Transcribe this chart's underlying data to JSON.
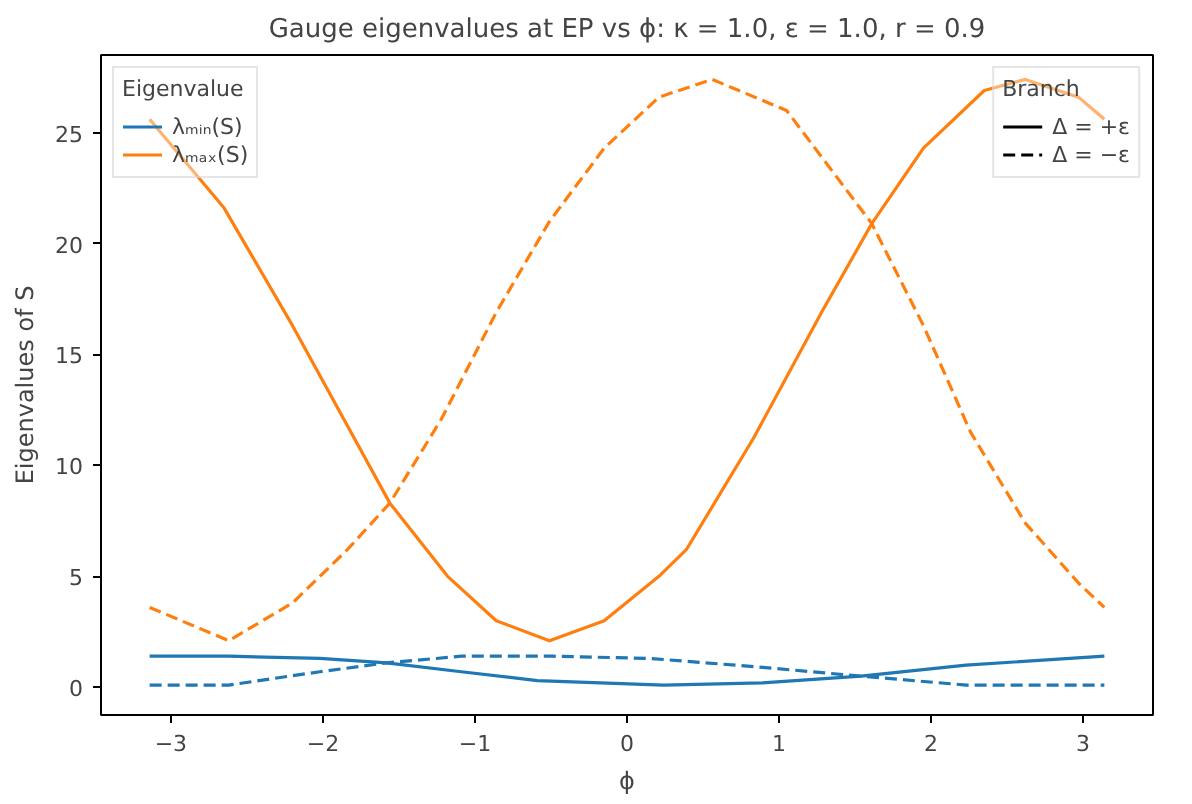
{
  "chart_data": {
    "type": "line",
    "title": "Gauge eigenvalues at EP vs ϕ: κ = 1.0, ε = 1.0, r = 0.9",
    "xlabel": "ϕ",
    "ylabel": "Eigenvalues of S",
    "xlim": [
      -3.46,
      3.46
    ],
    "ylim": [
      -1.25,
      28.5
    ],
    "xticks": [
      -3,
      -2,
      -1,
      0,
      1,
      2,
      3
    ],
    "yticks": [
      0,
      5,
      10,
      15,
      20,
      25
    ],
    "grid": false,
    "legend": "top left",
    "legend_title": "Eigenvalue",
    "annotations": [
      "Branch",
      "Δ = +ε",
      "Δ = −ε"
    ],
    "series": [
      {
        "name": "λₘᵢₙ(S)",
        "color": "#1f77b4",
        "line_style": "solid",
        "x": [
          -3.14,
          -2.62,
          -2.02,
          -1.58,
          -1.09,
          -0.59,
          0.24,
          0.89,
          1.54,
          2.23,
          3.14
        ],
        "values": [
          1.4,
          1.4,
          1.3,
          1.1,
          0.7,
          0.3,
          0.1,
          0.2,
          0.5,
          1.0,
          1.4
        ]
      },
      {
        "name": "λₘₐₓ(S)",
        "color": "#ff7f0e",
        "line_style": "solid",
        "x": [
          -3.14,
          -2.65,
          -2.2,
          -1.84,
          -1.56,
          -1.18,
          -0.86,
          -0.51,
          -0.15,
          0.21,
          0.39,
          0.83,
          1.28,
          1.61,
          1.95,
          2.35,
          2.62,
          2.97,
          3.14
        ],
        "values": [
          25.6,
          21.6,
          16.3,
          11.8,
          8.3,
          5.0,
          3.0,
          2.1,
          3.0,
          5.0,
          6.2,
          11.2,
          16.9,
          20.9,
          24.3,
          26.9,
          27.4,
          26.6,
          25.6
        ]
      },
      {
        "color": "#1f77b4",
        "line_style": "dashed",
        "x": [
          -3.14,
          -2.62,
          -2.02,
          -1.58,
          -1.09,
          -0.49,
          0.15,
          0.89,
          1.54,
          2.23,
          3.14
        ],
        "values": [
          0.1,
          0.1,
          0.7,
          1.1,
          1.4,
          1.4,
          1.3,
          0.9,
          0.5,
          0.1,
          0.1
        ]
      },
      {
        "color": "#ff7f0e",
        "line_style": "dashed",
        "x": [
          -3.14,
          -2.62,
          -2.2,
          -1.84,
          -1.56,
          -1.22,
          -0.86,
          -0.51,
          -0.15,
          0.21,
          0.56,
          1.05,
          1.61,
          1.95,
          2.26,
          2.62,
          2.97,
          3.14
        ],
        "values": [
          3.6,
          2.1,
          3.8,
          6.2,
          8.3,
          12.1,
          16.9,
          21.0,
          24.3,
          26.6,
          27.4,
          26.0,
          20.9,
          16.3,
          11.5,
          7.4,
          4.7,
          3.6
        ]
      }
    ]
  }
}
